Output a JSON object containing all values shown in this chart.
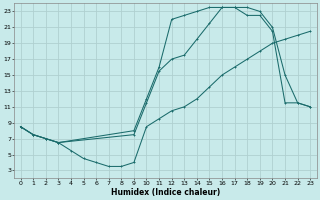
{
  "xlabel": "Humidex (Indice chaleur)",
  "bg_color": "#c8eaea",
  "grid_color": "#b0d0d0",
  "line_color": "#1a6b6b",
  "xlim": [
    -0.5,
    23.5
  ],
  "ylim": [
    2,
    24
  ],
  "xticks": [
    0,
    1,
    2,
    3,
    4,
    5,
    6,
    7,
    8,
    9,
    10,
    11,
    12,
    13,
    14,
    15,
    16,
    17,
    18,
    19,
    20,
    21,
    22,
    23
  ],
  "yticks": [
    3,
    5,
    7,
    9,
    11,
    13,
    15,
    17,
    19,
    21,
    23
  ],
  "line1_x": [
    0,
    1,
    2,
    3,
    4,
    5,
    6,
    7,
    8,
    9,
    10,
    11,
    12,
    13,
    14,
    15,
    16,
    17,
    18,
    19,
    20,
    21,
    22,
    23
  ],
  "line1_y": [
    8.5,
    7.5,
    7.0,
    6.5,
    5.5,
    4.5,
    4.0,
    3.5,
    3.5,
    4.0,
    8.5,
    9.5,
    10.5,
    11.0,
    12.0,
    13.5,
    15.0,
    16.0,
    17.0,
    18.0,
    19.0,
    19.5,
    20.0,
    20.5
  ],
  "line2_x": [
    0,
    1,
    2,
    3,
    9,
    10,
    11,
    12,
    13,
    14,
    15,
    16,
    17,
    18,
    19,
    20,
    21,
    22,
    23
  ],
  "line2_y": [
    8.5,
    7.5,
    7.0,
    6.5,
    7.5,
    11.5,
    15.5,
    17.0,
    17.5,
    19.5,
    21.5,
    23.5,
    23.5,
    23.5,
    23.0,
    21.0,
    15.0,
    11.5,
    11.0
  ],
  "line3_x": [
    0,
    1,
    2,
    3,
    9,
    10,
    11,
    12,
    13,
    14,
    15,
    16,
    17,
    18,
    19,
    20,
    21,
    22,
    23
  ],
  "line3_y": [
    8.5,
    7.5,
    7.0,
    6.5,
    8.0,
    12.0,
    16.0,
    22.0,
    22.5,
    23.0,
    23.5,
    23.5,
    23.5,
    22.5,
    22.5,
    20.5,
    11.5,
    11.5,
    11.0
  ]
}
